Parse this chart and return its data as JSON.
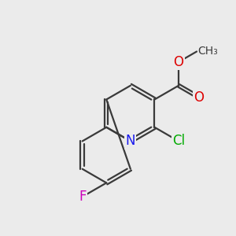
{
  "bg_color": "#ebebeb",
  "bond_color": "#3a3a3a",
  "bond_width": 1.6,
  "atom_colors": {
    "N": "#1a1aee",
    "O": "#dd0000",
    "F": "#cc00bb",
    "Cl": "#00aa00",
    "C": "#3a3a3a"
  },
  "font_size": 12,
  "small_font_size": 10
}
